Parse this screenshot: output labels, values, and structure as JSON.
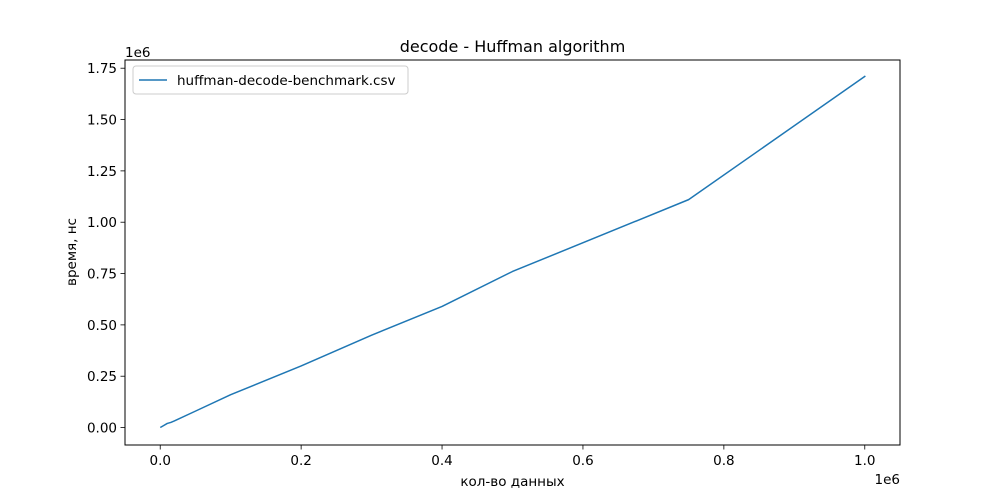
{
  "chart_data": {
    "type": "line",
    "title": "decode - Huffman algorithm",
    "xlabel": "кол-во данных",
    "ylabel": "время, нс",
    "x_offset_label": "1e6",
    "y_offset_label": "1e6",
    "xlim": [
      -50000,
      1050000
    ],
    "ylim": [
      -85000,
      1790000
    ],
    "x_ticks": [
      0,
      200000,
      400000,
      600000,
      800000,
      1000000
    ],
    "x_tick_labels": [
      "0.0",
      "0.2",
      "0.4",
      "0.6",
      "0.8",
      "1.0"
    ],
    "y_ticks": [
      0,
      250000,
      500000,
      750000,
      1000000,
      1250000,
      1500000,
      1750000
    ],
    "y_tick_labels": [
      "0.00",
      "0.25",
      "0.50",
      "0.75",
      "1.00",
      "1.25",
      "1.50",
      "1.75"
    ],
    "grid": false,
    "legend": "upper-left",
    "series": [
      {
        "name": "huffman-decode-benchmark.csv",
        "color": "#1f77b4",
        "x": [
          1000,
          5000,
          10000,
          15000,
          20000,
          50000,
          100000,
          200000,
          300000,
          400000,
          500000,
          750000,
          1000000
        ],
        "y": [
          2000,
          10000,
          20000,
          25000,
          32000,
          80000,
          160000,
          300000,
          450000,
          590000,
          760000,
          1110000,
          1710000
        ]
      }
    ]
  }
}
